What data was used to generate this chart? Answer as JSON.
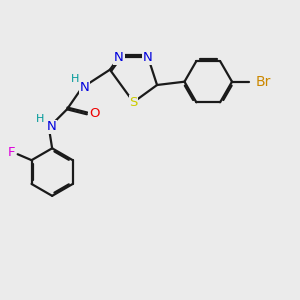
{
  "bg_color": "#ebebeb",
  "bond_color": "#1a1a1a",
  "bond_lw": 1.6,
  "dbo": 0.055,
  "atom_colors": {
    "N": "#0000dd",
    "S": "#cccc00",
    "O": "#ee0000",
    "F": "#dd00dd",
    "Br": "#cc8800",
    "H": "#009999"
  },
  "fs": 9.5,
  "fs_small": 8.0,
  "fs_br": 9.5
}
